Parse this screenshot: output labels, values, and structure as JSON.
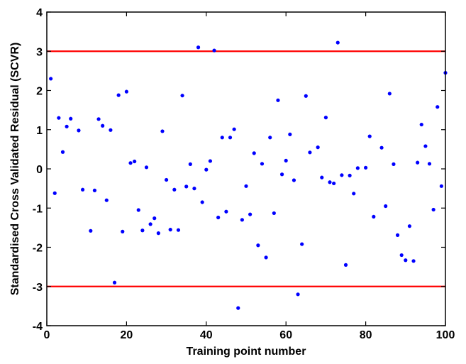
{
  "chart_data": {
    "type": "scatter",
    "title": "",
    "xlabel": "Training point number",
    "ylabel": "Standardised Cross Validated Residual (SCVR)",
    "xlim": [
      0,
      100
    ],
    "ylim": [
      -4,
      4
    ],
    "xticks": [
      0,
      20,
      40,
      60,
      80,
      100
    ],
    "yticks": [
      -4,
      -3,
      -2,
      -1,
      0,
      1,
      2,
      3,
      4
    ],
    "grid": false,
    "legend": "none",
    "point_color": "#0000ff",
    "threshold_color": "#ff0000",
    "thresholds": [
      3,
      -3
    ],
    "series": [
      {
        "x": [
          1,
          2,
          3,
          4,
          5,
          6,
          8,
          9,
          11,
          12,
          13,
          14,
          15,
          16,
          17,
          18,
          19,
          20,
          21,
          22,
          23,
          24,
          25,
          26,
          27,
          28,
          29,
          30,
          31,
          32,
          33,
          34,
          35,
          36,
          37,
          38,
          39,
          40,
          41,
          42,
          43,
          44,
          45,
          46,
          47,
          48,
          49,
          50,
          51,
          52,
          53,
          54,
          55,
          56,
          57,
          58,
          59,
          60,
          61,
          62,
          63,
          64,
          65,
          66,
          68,
          69,
          70,
          71,
          72,
          73,
          74,
          75,
          76,
          77,
          78,
          80,
          81,
          82,
          84,
          85,
          86,
          87,
          88,
          89,
          90,
          91,
          92,
          93,
          94,
          95,
          96,
          97,
          98,
          99,
          100
        ],
        "y": [
          2.3,
          -0.62,
          1.3,
          0.43,
          1.08,
          1.28,
          0.98,
          -0.53,
          -1.58,
          -0.55,
          1.27,
          1.1,
          -0.8,
          0.99,
          -2.9,
          1.88,
          -1.6,
          1.97,
          0.15,
          0.19,
          -1.05,
          -1.57,
          0.04,
          -1.41,
          -1.26,
          -1.64,
          0.96,
          -0.28,
          -1.55,
          -0.53,
          -1.56,
          1.87,
          -0.45,
          0.12,
          -0.5,
          3.1,
          -0.85,
          -0.02,
          0.2,
          3.02,
          -1.24,
          0.8,
          -1.09,
          0.8,
          1.01,
          -3.55,
          -1.3,
          -0.44,
          -1.16,
          0.4,
          -1.95,
          0.13,
          -2.26,
          0.8,
          -1.13,
          1.75,
          -0.14,
          0.21,
          0.88,
          -0.29,
          -3.2,
          -1.92,
          1.86,
          0.42,
          0.55,
          -0.22,
          1.31,
          -0.34,
          -0.37,
          3.22,
          -0.16,
          -2.45,
          -0.17,
          -0.63,
          0.02,
          0.03,
          0.83,
          -1.22,
          0.54,
          -0.95,
          1.92,
          0.12,
          -1.69,
          -2.2,
          -2.33,
          -1.46,
          -2.35,
          0.16,
          1.13,
          0.58,
          0.13,
          -1.04,
          1.58,
          -0.44,
          2.45
        ]
      }
    ]
  }
}
